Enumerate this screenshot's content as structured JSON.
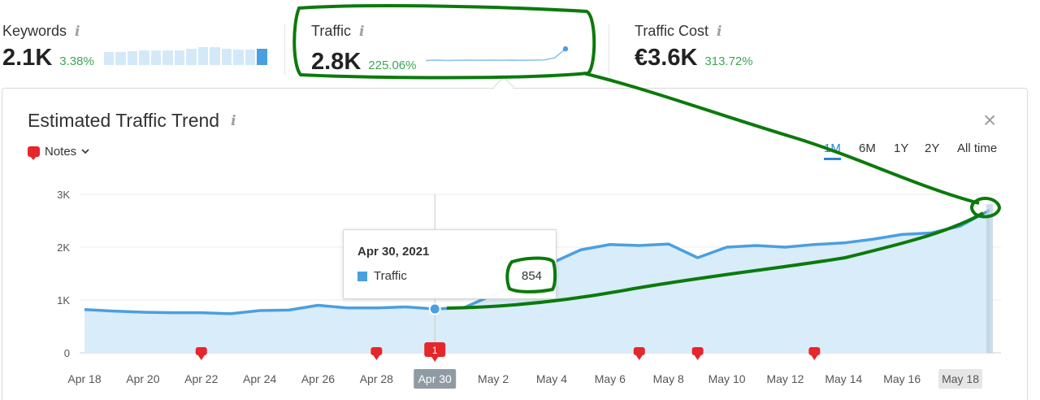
{
  "metrics": [
    {
      "label": "Keywords",
      "info_icon": "i",
      "value": "2.1K",
      "delta": "3.38%",
      "sparkline": [
        0.72,
        0.72,
        0.76,
        0.8,
        0.8,
        0.8,
        0.8,
        0.9,
        1.0,
        0.98,
        0.92,
        0.88,
        0.85,
        0.9
      ]
    },
    {
      "label": "Traffic",
      "info_icon": "i",
      "value": "2.8K",
      "delta": "225.06%",
      "sparkline": [
        0.3,
        0.32,
        0.3,
        0.31,
        0.32,
        0.31,
        0.32,
        0.31,
        0.32,
        0.31,
        0.32,
        0.33,
        0.45,
        0.95
      ]
    },
    {
      "label": "Traffic Cost",
      "info_icon": "i",
      "value": "€3.6K",
      "delta": "313.72%"
    }
  ],
  "panel": {
    "title": "Estimated Traffic Trend",
    "info_icon": "i",
    "notes_label": "Notes",
    "close_icon": "×",
    "ranges": [
      "1M",
      "6M",
      "1Y",
      "2Y",
      "All time"
    ],
    "active_range": "1M"
  },
  "chart_data": {
    "type": "area",
    "series": [
      {
        "name": "Traffic",
        "values": [
          820,
          790,
          770,
          760,
          760,
          740,
          800,
          810,
          900,
          850,
          850,
          870,
          830,
          854,
          1100,
          1350,
          1700,
          1950,
          2050,
          2030,
          2060,
          1800,
          2000,
          2030,
          2000,
          2050,
          2080,
          2150,
          2240,
          2270,
          2400,
          2700
        ]
      }
    ],
    "x_tick_labels": [
      "Apr 18",
      "Apr 20",
      "Apr 22",
      "Apr 24",
      "Apr 26",
      "Apr 28",
      "Apr 30",
      "May 2",
      "May 4",
      "May 6",
      "May 8",
      "May 10",
      "May 12",
      "May 14",
      "May 16",
      "May 18"
    ],
    "y_tick_labels": [
      "0",
      "1K",
      "2K",
      "3K"
    ],
    "ylim": [
      0,
      3000
    ],
    "grid": true,
    "highlighted_x": "Apr 30",
    "note_days": [
      "Apr 22",
      "Apr 28",
      "Apr 30",
      "May 7",
      "May 9",
      "May 13"
    ],
    "note_badge_count": "1"
  },
  "tooltip": {
    "date": "Apr 30, 2021",
    "series": "Traffic",
    "value": "854"
  },
  "colors": {
    "line": "#4a9fe0",
    "area": "#d9ecfa",
    "positive": "#3aa655",
    "note": "#e5262b",
    "annotation": "#0b7a0b",
    "active_tab": "#2a86d6"
  }
}
